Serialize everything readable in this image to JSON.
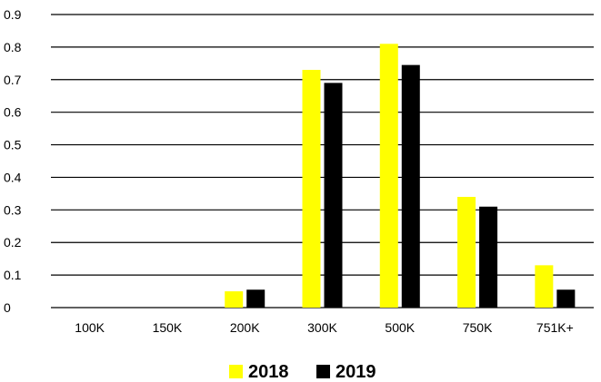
{
  "chart_data": {
    "type": "bar",
    "title": "",
    "xlabel": "",
    "ylabel": "",
    "categories": [
      "100K",
      "150K",
      "200K",
      "300K",
      "500K",
      "750K",
      "751K+"
    ],
    "series": [
      {
        "name": "2018",
        "color": "#FFFF00",
        "values": [
          0,
          0,
          0.05,
          0.73,
          0.81,
          0.34,
          0.13
        ]
      },
      {
        "name": "2019",
        "color": "#000000",
        "values": [
          0,
          0,
          0.055,
          0.69,
          0.745,
          0.31,
          0.055
        ]
      }
    ],
    "ylim": [
      0,
      0.9
    ],
    "yticks": [
      "0",
      "0.1",
      "0.2",
      "0.3",
      "0.4",
      "0.5",
      "0.6",
      "0.7",
      "0.8",
      "0.9"
    ],
    "grid": true,
    "legend_position": "bottom"
  }
}
